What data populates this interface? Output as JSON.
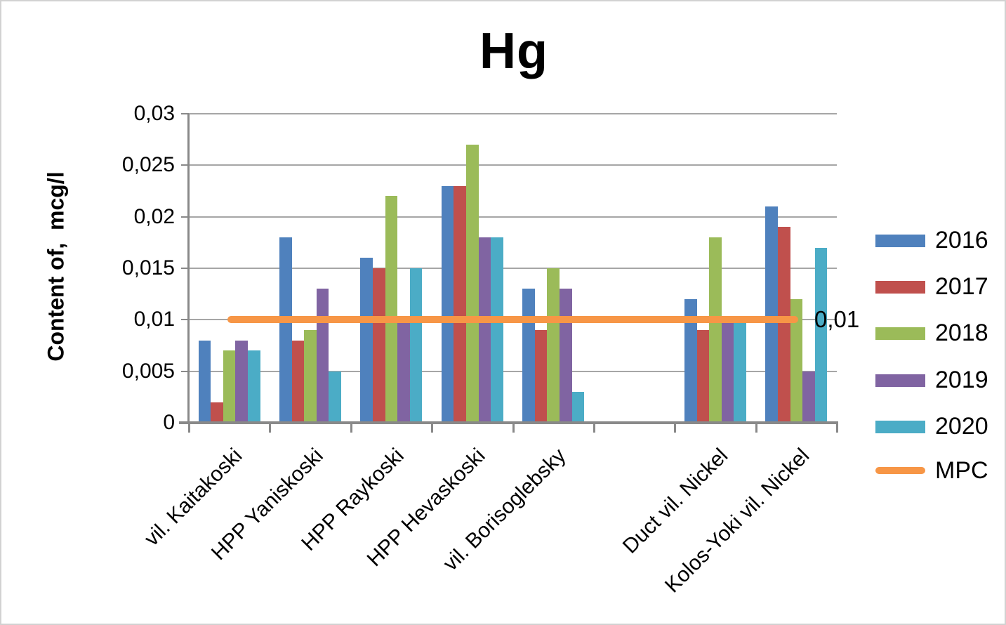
{
  "chart_data": {
    "type": "bar",
    "title": "Hg",
    "ylabel": "Content of,  mcg/l",
    "xlabel": "",
    "categories": [
      "vil. Kaitakoski",
      "HPP Yaniskoski",
      "HPP Raykoski",
      "HPP Hevaskoski",
      "vil. Borisoglebsky",
      "",
      "Duct vil. Nickel",
      "Kolos-Yoki vil. Nickel"
    ],
    "series": [
      {
        "name": "2016",
        "color": "#4F81BD",
        "values": [
          0.008,
          0.018,
          0.016,
          0.023,
          0.013,
          null,
          0.012,
          0.021
        ]
      },
      {
        "name": "2017",
        "color": "#C0504D",
        "values": [
          0.002,
          0.008,
          0.015,
          0.023,
          0.009,
          null,
          0.009,
          0.019
        ]
      },
      {
        "name": "2018",
        "color": "#9BBB59",
        "values": [
          0.007,
          0.009,
          0.022,
          0.027,
          0.015,
          null,
          0.018,
          0.012
        ]
      },
      {
        "name": "2019",
        "color": "#8064A2",
        "values": [
          0.008,
          0.013,
          0.01,
          0.018,
          0.013,
          null,
          0.01,
          0.005
        ]
      },
      {
        "name": "2020",
        "color": "#4BACC6",
        "values": [
          0.007,
          0.005,
          0.015,
          0.018,
          0.003,
          null,
          0.01,
          0.017
        ]
      }
    ],
    "mpc_line": {
      "label": "MPC",
      "value": 0.01,
      "annotation": "0,01",
      "color": "#F79646"
    },
    "y_ticks": [
      {
        "value": 0,
        "label": "0"
      },
      {
        "value": 0.005,
        "label": "0,005"
      },
      {
        "value": 0.01,
        "label": "0,01"
      },
      {
        "value": 0.015,
        "label": "0,015"
      },
      {
        "value": 0.02,
        "label": "0,02"
      },
      {
        "value": 0.025,
        "label": "0,025"
      },
      {
        "value": 0.03,
        "label": "0,03"
      }
    ],
    "ylim": [
      0,
      0.03
    ],
    "grid": true,
    "legend_position": "right",
    "colors": {
      "gridline": "#a6a6a6",
      "axis": "#898989",
      "text": "#000000"
    }
  }
}
